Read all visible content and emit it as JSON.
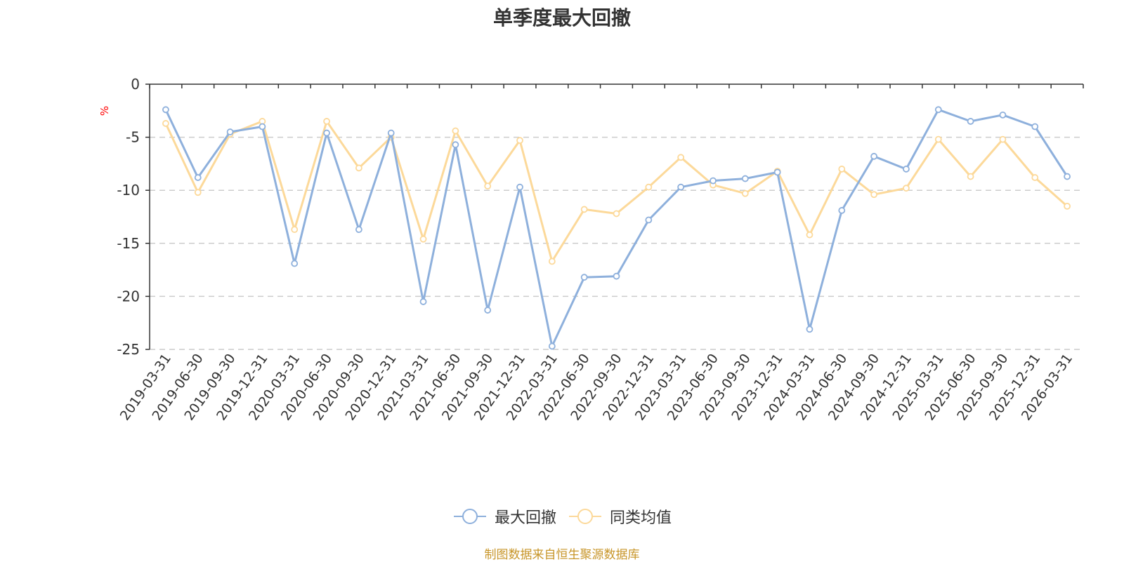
{
  "chart_data": {
    "type": "line",
    "title": "单季度最大回撤",
    "ylabel": "%",
    "xlabel": "",
    "ylim": [
      -25,
      0
    ],
    "yticks": [
      0,
      -5,
      -10,
      -15,
      -20,
      -25
    ],
    "grid": true,
    "legend_position": "bottom",
    "categories": [
      "2019-03-31",
      "2019-06-30",
      "2019-09-30",
      "2019-12-31",
      "2020-03-31",
      "2020-06-30",
      "2020-09-30",
      "2020-12-31",
      "2021-03-31",
      "2021-06-30",
      "2021-09-30",
      "2021-12-31",
      "2022-03-31",
      "2022-06-30",
      "2022-09-30",
      "2022-12-31",
      "2023-03-31",
      "2023-06-30",
      "2023-09-30",
      "2023-12-31",
      "2024-03-31",
      "2024-06-30",
      "2024-09-30",
      "2024-12-31",
      "2025-03-31",
      "2025-06-30",
      "2025-09-30",
      "2025-12-31",
      "2026-03-31"
    ],
    "series": [
      {
        "name": "最大回撤",
        "color": "#8eb0dc",
        "values": [
          -2.4,
          -8.8,
          -4.5,
          -4.0,
          -16.9,
          -4.6,
          -13.7,
          -4.6,
          -20.5,
          -5.7,
          -21.3,
          -9.7,
          -24.7,
          -18.2,
          -18.1,
          -12.8,
          -9.7,
          -9.1,
          -8.9,
          -8.3,
          -23.1,
          -11.9,
          -6.8,
          -8.0,
          -2.4,
          -3.5,
          -2.9,
          -4.0,
          -8.7
        ]
      },
      {
        "name": "同类均值",
        "color": "#fcd99a",
        "values": [
          -3.7,
          -10.2,
          -4.7,
          -3.5,
          -13.7,
          -3.5,
          -7.9,
          -5.0,
          -14.6,
          -4.4,
          -9.6,
          -5.3,
          -16.7,
          -11.8,
          -12.2,
          -9.7,
          -6.9,
          -9.5,
          -10.3,
          -8.2,
          -14.2,
          -8.0,
          -10.4,
          -9.8,
          -5.2,
          -8.7,
          -5.2,
          -8.8,
          -11.5
        ]
      }
    ]
  },
  "source": {
    "text": "制图数据来自恒生聚源数据库",
    "color": "#c8962a"
  },
  "colors": {
    "axis": "#333333",
    "grid": "#cccccc",
    "ylabel": "#ff0000",
    "tick_text": "#333333"
  }
}
